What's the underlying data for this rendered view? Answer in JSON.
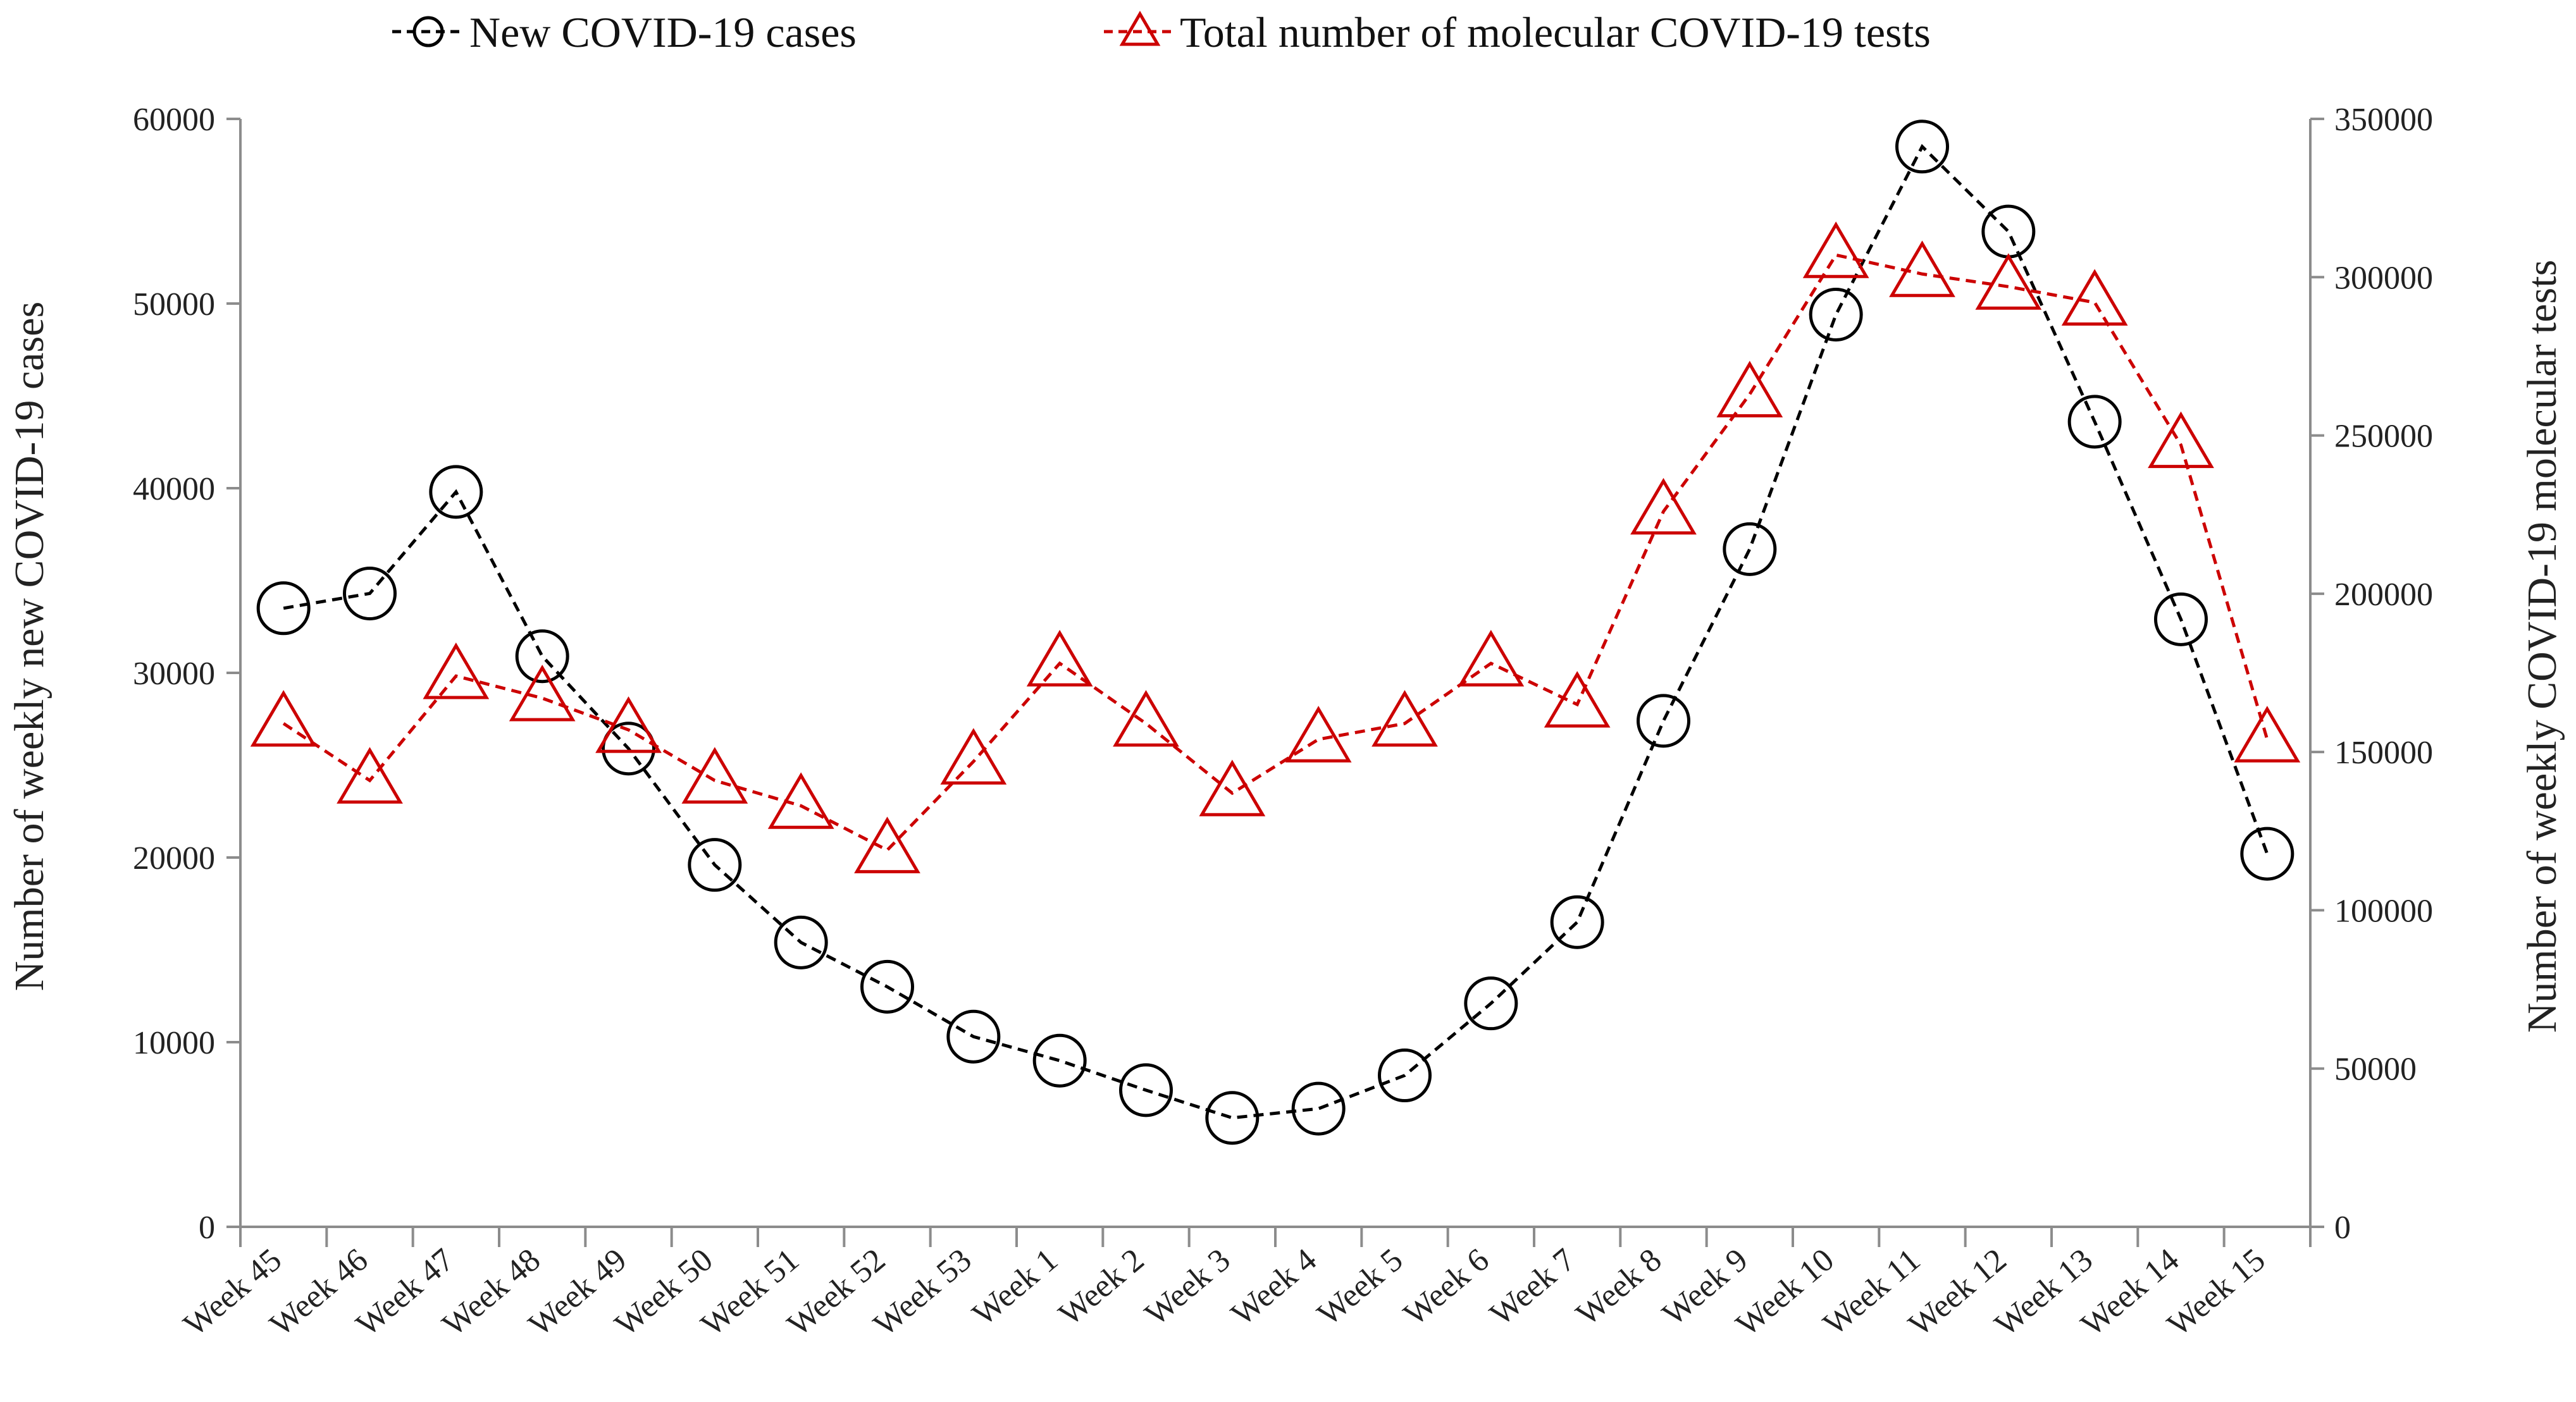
{
  "chart_data": {
    "type": "line",
    "title": "",
    "categories": [
      "Week 45",
      "Week 46",
      "Week 47",
      "Week 48",
      "Week 49",
      "Week 50",
      "Week 51",
      "Week 52",
      "Week 53",
      "Week 1",
      "Week 2",
      "Week 3",
      "Week 4",
      "Week 5",
      "Week 6",
      "Week 7",
      "Week 8",
      "Week 9",
      "Week 10",
      "Week 11",
      "Week 12",
      "Week 13",
      "Week 14",
      "Week 15"
    ],
    "xlabel": "",
    "ylabel": "Number of weekly new COVID-19 cases",
    "y2label": "Number of weekly COVID-19 molecular tests",
    "ylim": [
      0,
      60000
    ],
    "y2lim": [
      0,
      350000
    ],
    "yticks": [
      0,
      10000,
      20000,
      30000,
      40000,
      50000,
      60000
    ],
    "y2ticks": [
      0,
      50000,
      100000,
      150000,
      200000,
      250000,
      300000,
      350000
    ],
    "legend_position": "top-center",
    "grid": false,
    "series": [
      {
        "name": "New COVID-19 cases",
        "axis": "left",
        "color": "#000000",
        "marker": "circle",
        "line": "dashed",
        "values": [
          33500,
          34300,
          39800,
          30900,
          25900,
          19600,
          15400,
          13000,
          10300,
          9000,
          7400,
          5900,
          6400,
          8200,
          12100,
          16500,
          27400,
          36700,
          49400,
          58500,
          53900,
          43600,
          32900,
          20200
        ]
      },
      {
        "name": "Total number of molecular COVID-19 tests",
        "axis": "right",
        "color": "#cc0000",
        "marker": "triangle",
        "line": "dashed",
        "values": [
          159000,
          141000,
          174000,
          167000,
          157000,
          141000,
          133000,
          119000,
          147000,
          178000,
          159000,
          137000,
          154000,
          159000,
          178000,
          165000,
          226000,
          263000,
          307000,
          301000,
          297000,
          292000,
          247000,
          154000
        ]
      }
    ]
  }
}
